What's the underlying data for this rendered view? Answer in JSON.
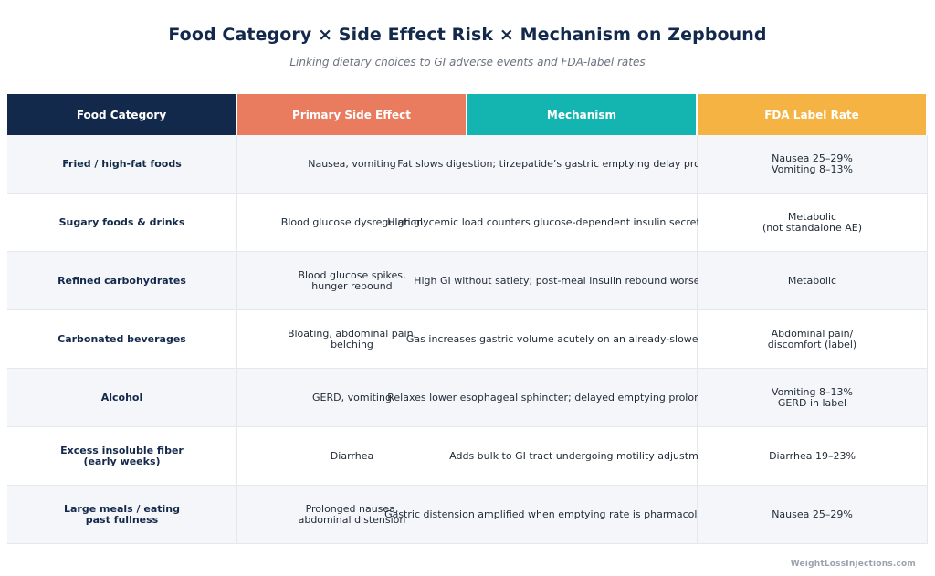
{
  "title": "Food Category × Side Effect Risk × Mechanism on Zepbound",
  "subtitle": "Linking dietary choices to GI adverse events and FDA-label rates",
  "colors": {
    "header_navy": "#13294b",
    "header_coral": "#e97b5f",
    "header_teal": "#14b5b0",
    "header_amber": "#f4b342",
    "row_alt": "#f4f6fa"
  },
  "headers": [
    "Food Category",
    "Primary Side Effect",
    "Mechanism",
    "FDA Label Rate"
  ],
  "rows": [
    {
      "food": "Fried / high-fat foods",
      "effect": "Nausea, vomiting",
      "mechanism": "Fat slows digestion; tirzepatide’s gastric emptying delay prolongs nausea",
      "rate": "Nausea 25–29%\nVomiting 8–13%"
    },
    {
      "food": "Sugary foods & drinks",
      "effect": "Blood glucose dysregulation",
      "mechanism": "High glycemic load counters glucose-dependent insulin secretion mechanism",
      "rate": "Metabolic\n(not standalone AE)"
    },
    {
      "food": "Refined carbohydrates",
      "effect": "Blood glucose spikes,\nhunger rebound",
      "mechanism": "High GI without satiety; post-meal insulin rebound worsens hunger",
      "rate": "Metabolic"
    },
    {
      "food": "Carbonated beverages",
      "effect": "Bloating, abdominal pain,\nbelching",
      "mechanism": "Gas increases gastric volume acutely on an already-slowed GI system",
      "rate": "Abdominal pain/\ndiscomfort (label)"
    },
    {
      "food": "Alcohol",
      "effect": "GERD, vomiting",
      "mechanism": "Relaxes lower esophageal sphincter; delayed emptying prolongs acid contact",
      "rate": "Vomiting 8–13%\nGERD in label"
    },
    {
      "food": "Excess insoluble fiber\n(early weeks)",
      "effect": "Diarrhea",
      "mechanism": "Adds bulk to GI tract undergoing motility adjustment",
      "rate": "Diarrhea 19–23%"
    },
    {
      "food": "Large meals / eating\npast fullness",
      "effect": "Prolonged nausea,\nabdominal distension",
      "mechanism": "Gastric distension amplified when emptying rate is pharmacologically reduced",
      "rate": "Nausea 25–29%"
    }
  ],
  "footer": "WeightLossInjections.com"
}
